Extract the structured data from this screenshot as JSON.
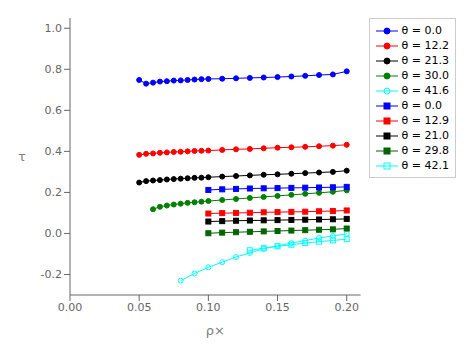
{
  "chart_data": {
    "type": "line",
    "xlabel": "ρ×",
    "ylabel": "τ",
    "xlim": [
      0.0,
      0.21
    ],
    "ylim": [
      -0.3,
      1.05
    ],
    "xticks": [
      {
        "value": 0.0,
        "label": "0.00"
      },
      0.05,
      {
        "value": 0.1,
        "label": "0.10"
      },
      0.15,
      {
        "value": 0.2,
        "label": "0.20"
      }
    ],
    "yticks": [
      -0.2,
      {
        "value": 0.0,
        "label": "0.0"
      },
      0.2,
      0.4,
      0.6,
      0.8,
      {
        "value": 1.0,
        "label": "1.0"
      }
    ],
    "grid": false,
    "legend": "upper right",
    "series": [
      {
        "name": "θ = 0.0",
        "color": "blue",
        "marker": "circle",
        "x": [
          0.05,
          0.055,
          0.06,
          0.065,
          0.07,
          0.075,
          0.08,
          0.085,
          0.09,
          0.095,
          0.1,
          0.11,
          0.12,
          0.13,
          0.14,
          0.15,
          0.16,
          0.17,
          0.18,
          0.19,
          0.2
        ],
        "values": [
          0.748,
          0.73,
          0.735,
          0.74,
          0.742,
          0.745,
          0.746,
          0.748,
          0.75,
          0.752,
          0.753,
          0.754,
          0.756,
          0.758,
          0.76,
          0.762,
          0.765,
          0.768,
          0.772,
          0.775,
          0.79
        ]
      },
      {
        "name": "θ = 12.2",
        "color": "red",
        "marker": "circle",
        "x": [
          0.05,
          0.055,
          0.06,
          0.065,
          0.07,
          0.075,
          0.08,
          0.085,
          0.09,
          0.095,
          0.1,
          0.11,
          0.12,
          0.13,
          0.14,
          0.15,
          0.16,
          0.17,
          0.18,
          0.19,
          0.2
        ],
        "values": [
          0.383,
          0.388,
          0.39,
          0.393,
          0.395,
          0.397,
          0.398,
          0.4,
          0.402,
          0.403,
          0.404,
          0.407,
          0.41,
          0.412,
          0.415,
          0.418,
          0.42,
          0.422,
          0.425,
          0.428,
          0.432
        ]
      },
      {
        "name": "θ = 21.3",
        "color": "black",
        "marker": "circle",
        "x": [
          0.05,
          0.055,
          0.06,
          0.065,
          0.07,
          0.075,
          0.08,
          0.085,
          0.09,
          0.095,
          0.1,
          0.11,
          0.12,
          0.13,
          0.14,
          0.15,
          0.16,
          0.17,
          0.18,
          0.19,
          0.2
        ],
        "values": [
          0.248,
          0.255,
          0.258,
          0.26,
          0.263,
          0.265,
          0.267,
          0.269,
          0.271,
          0.272,
          0.274,
          0.277,
          0.28,
          0.283,
          0.286,
          0.288,
          0.291,
          0.294,
          0.297,
          0.3,
          0.306
        ]
      },
      {
        "name": "θ = 30.0",
        "color": "green",
        "marker": "circle",
        "x": [
          0.06,
          0.065,
          0.07,
          0.075,
          0.08,
          0.085,
          0.09,
          0.095,
          0.1,
          0.11,
          0.12,
          0.13,
          0.14,
          0.15,
          0.16,
          0.17,
          0.18,
          0.19,
          0.2
        ],
        "values": [
          0.118,
          0.13,
          0.136,
          0.141,
          0.145,
          0.149,
          0.152,
          0.155,
          0.158,
          0.163,
          0.168,
          0.173,
          0.178,
          0.183,
          0.188,
          0.193,
          0.198,
          0.203,
          0.21
        ]
      },
      {
        "name": "θ = 41.6",
        "color": "cyan",
        "marker": "open-circle",
        "x": [
          0.08,
          0.09,
          0.1,
          0.11,
          0.12,
          0.13,
          0.14,
          0.15,
          0.16,
          0.17,
          0.18,
          0.19,
          0.2
        ],
        "values": [
          -0.23,
          -0.195,
          -0.165,
          -0.14,
          -0.115,
          -0.095,
          -0.075,
          -0.06,
          -0.047,
          -0.035,
          -0.022,
          -0.012,
          -0.002
        ]
      },
      {
        "name": "θ = 0.0",
        "color": "blue",
        "marker": "square",
        "x": [
          0.1,
          0.11,
          0.12,
          0.13,
          0.14,
          0.15,
          0.16,
          0.17,
          0.18,
          0.19,
          0.2
        ],
        "values": [
          0.212,
          0.215,
          0.217,
          0.219,
          0.22,
          0.221,
          0.222,
          0.223,
          0.224,
          0.225,
          0.227
        ]
      },
      {
        "name": "θ = 12.9",
        "color": "red",
        "marker": "square",
        "x": [
          0.1,
          0.11,
          0.12,
          0.13,
          0.14,
          0.15,
          0.16,
          0.17,
          0.18,
          0.19,
          0.2
        ],
        "values": [
          0.097,
          0.099,
          0.1,
          0.101,
          0.103,
          0.104,
          0.105,
          0.106,
          0.108,
          0.109,
          0.112
        ]
      },
      {
        "name": "θ = 21.0",
        "color": "black",
        "marker": "square",
        "x": [
          0.1,
          0.11,
          0.12,
          0.13,
          0.14,
          0.15,
          0.16,
          0.17,
          0.18,
          0.19,
          0.2
        ],
        "values": [
          0.058,
          0.06,
          0.062,
          0.063,
          0.064,
          0.065,
          0.066,
          0.067,
          0.068,
          0.069,
          0.071
        ]
      },
      {
        "name": "θ = 29.8",
        "color": "darkgreen",
        "marker": "square",
        "x": [
          0.1,
          0.11,
          0.12,
          0.13,
          0.14,
          0.15,
          0.16,
          0.17,
          0.18,
          0.19,
          0.2
        ],
        "values": [
          0.001,
          0.004,
          0.006,
          0.008,
          0.01,
          0.012,
          0.014,
          0.016,
          0.018,
          0.02,
          0.024
        ]
      },
      {
        "name": "θ = 42.1",
        "color": "cyan",
        "marker": "open-square",
        "x": [
          0.13,
          0.14,
          0.15,
          0.16,
          0.17,
          0.18,
          0.19,
          0.2
        ],
        "values": [
          -0.082,
          -0.072,
          -0.063,
          -0.055,
          -0.047,
          -0.04,
          -0.034,
          -0.028
        ]
      }
    ]
  }
}
